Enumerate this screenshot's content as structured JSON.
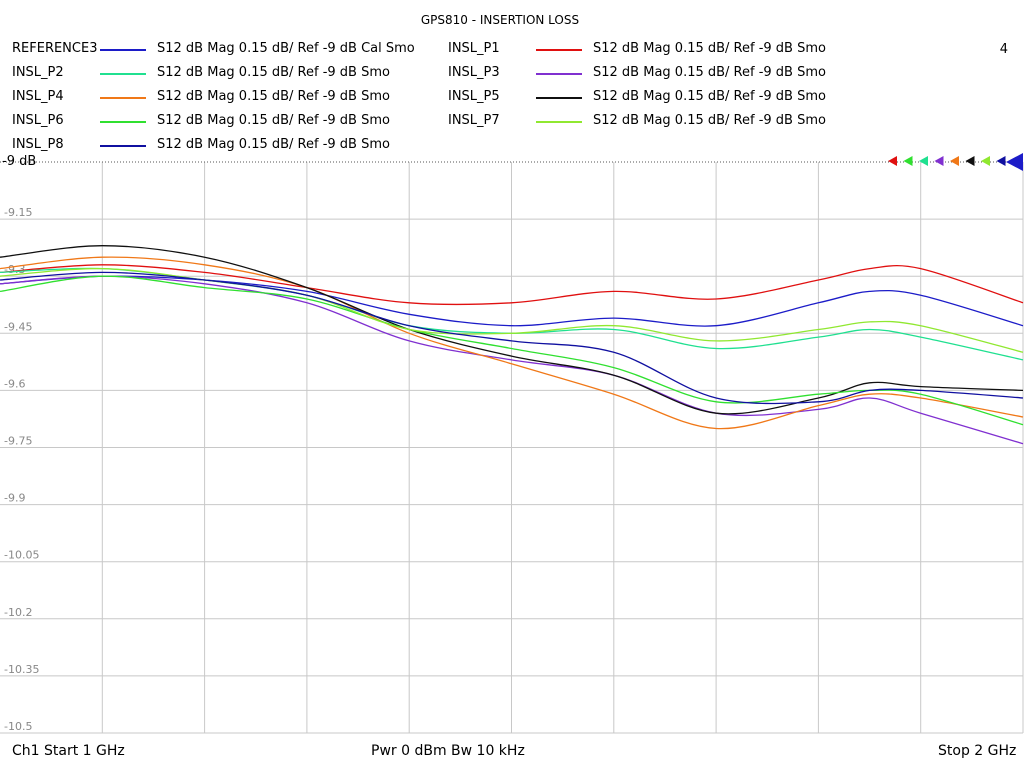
{
  "chart_data": {
    "type": "line",
    "title": "GPS810 - INSERTION LOSS",
    "channel_number": "4",
    "reference_label": "-9 dB",
    "x_range": [
      1,
      2
    ],
    "ylim": [
      -10.5,
      -9.0
    ],
    "y_ticks": [
      "-9",
      "-9.15",
      "-9.3",
      "-9.45",
      "-9.6",
      "-9.75",
      "-9.9",
      "-10.05",
      "-10.2",
      "-10.35",
      "-10.5"
    ],
    "grid": true,
    "footer": {
      "start": "Ch1  Start  1 GHz",
      "center": "Pwr  0 dBm  Bw  10 kHz",
      "stop": "Stop  2 GHz"
    },
    "x": [
      1.0,
      1.1,
      1.2,
      1.3,
      1.4,
      1.5,
      1.6,
      1.7,
      1.8,
      1.85,
      1.9,
      2.0
    ],
    "series": [
      {
        "name": "REFERENCE3",
        "desc": "S12  dB Mag  0.15 dB/ Ref -9 dB  Cal Smo",
        "color": "#1c1cc8",
        "values": [
          -9.32,
          -9.3,
          -9.31,
          -9.34,
          -9.4,
          -9.43,
          -9.41,
          -9.43,
          -9.37,
          -9.34,
          -9.35,
          -9.43
        ]
      },
      {
        "name": "INSL_P1",
        "desc": "S12  dB Mag  0.15 dB/ Ref -9 dB  Smo",
        "color": "#e01010",
        "values": [
          -9.29,
          -9.27,
          -9.29,
          -9.33,
          -9.37,
          -9.37,
          -9.34,
          -9.36,
          -9.31,
          -9.28,
          -9.28,
          -9.37
        ]
      },
      {
        "name": "INSL_P2",
        "desc": "S12  dB Mag  0.15 dB/ Ref -9 dB  Smo",
        "color": "#20e090",
        "values": [
          -9.29,
          -9.28,
          -9.31,
          -9.35,
          -9.43,
          -9.45,
          -9.44,
          -9.49,
          -9.46,
          -9.44,
          -9.46,
          -9.52
        ]
      },
      {
        "name": "INSL_P3",
        "desc": "S12  dB Mag  0.15 dB/ Ref -9 dB  Smo",
        "color": "#8030d0",
        "values": [
          -9.32,
          -9.3,
          -9.32,
          -9.37,
          -9.47,
          -9.52,
          -9.56,
          -9.66,
          -9.65,
          -9.62,
          -9.66,
          -9.74
        ]
      },
      {
        "name": "INSL_P4",
        "desc": "S12  dB Mag  0.15 dB/ Ref -9 dB  Smo",
        "color": "#f07818",
        "values": [
          -9.28,
          -9.25,
          -9.27,
          -9.33,
          -9.45,
          -9.53,
          -9.61,
          -9.7,
          -9.64,
          -9.61,
          -9.62,
          -9.67
        ]
      },
      {
        "name": "INSL_P5",
        "desc": "S12  dB Mag  0.15 dB/ Ref -9 dB  Smo",
        "color": "#101010",
        "values": [
          -9.25,
          -9.22,
          -9.25,
          -9.33,
          -9.44,
          -9.51,
          -9.56,
          -9.66,
          -9.62,
          -9.58,
          -9.59,
          -9.6
        ]
      },
      {
        "name": "INSL_P6",
        "desc": "S12  dB Mag  0.15 dB/ Ref -9 dB  Smo",
        "color": "#30e030",
        "values": [
          -9.34,
          -9.3,
          -9.33,
          -9.36,
          -9.44,
          -9.49,
          -9.54,
          -9.63,
          -9.61,
          -9.6,
          -9.61,
          -9.69
        ]
      },
      {
        "name": "INSL_P7",
        "desc": "S12  dB Mag  0.15 dB/ Ref -9 dB  Smo",
        "color": "#90e830",
        "values": [
          -9.3,
          -9.28,
          -9.31,
          -9.35,
          -9.44,
          -9.45,
          -9.43,
          -9.47,
          -9.44,
          -9.42,
          -9.43,
          -9.5
        ]
      },
      {
        "name": "INSL_P8",
        "desc": "S12  dB Mag  0.15 dB/ Ref -9 dB  Smo",
        "color": "#1010a0",
        "values": [
          -9.31,
          -9.29,
          -9.31,
          -9.35,
          -9.43,
          -9.47,
          -9.5,
          -9.62,
          -9.63,
          -9.6,
          -9.6,
          -9.62
        ]
      }
    ]
  }
}
